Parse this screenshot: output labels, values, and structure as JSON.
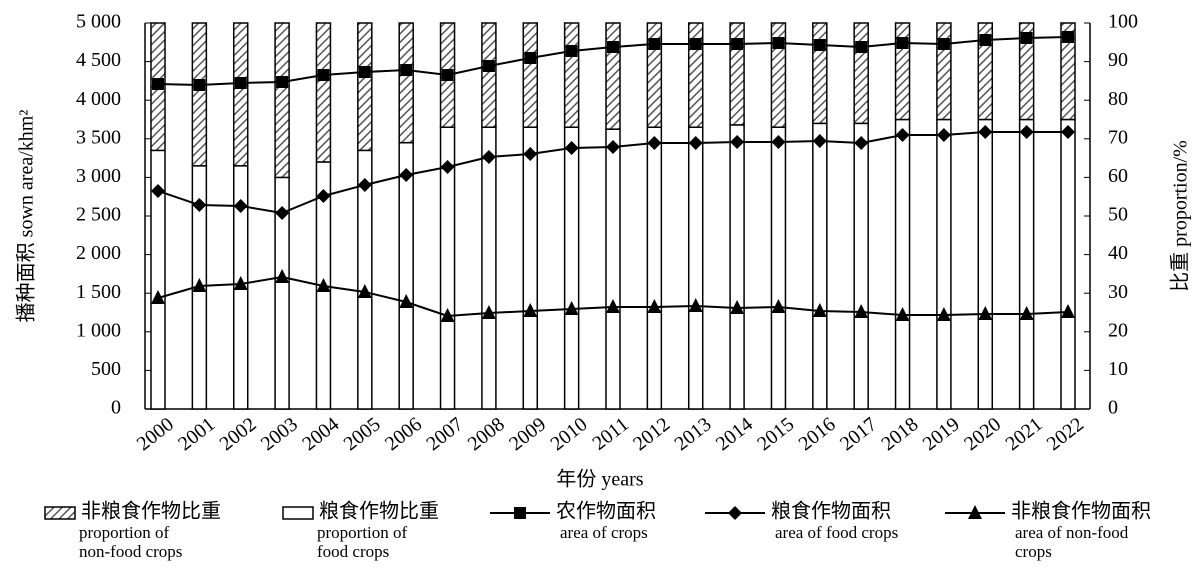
{
  "chart_data": {
    "type": "bar_line",
    "x_label": "年份 years",
    "y_label": "播种面积 sown area/khm²",
    "y2_label": "比重 proportion/%",
    "categories": [
      "2000",
      "2001",
      "2002",
      "2003",
      "2004",
      "2005",
      "2006",
      "2007",
      "2008",
      "2009",
      "2010",
      "2011",
      "2012",
      "2013",
      "2014",
      "2015",
      "2016",
      "2017",
      "2018",
      "2019",
      "2020",
      "2021",
      "2022"
    ],
    "ylim": [
      0,
      5000
    ],
    "yticks": [
      0,
      500,
      {
        "value": 1000,
        "label": "1 000"
      },
      {
        "value": 1500,
        "label": "1 500"
      },
      {
        "value": 2000,
        "label": "2 000"
      },
      {
        "value": 2500,
        "label": "2 500"
      },
      {
        "value": 3000,
        "label": "3 000"
      },
      {
        "value": 3500,
        "label": "3 500"
      },
      {
        "value": 4000,
        "label": "4 000"
      },
      {
        "value": 4500,
        "label": "4 500"
      },
      {
        "value": 5000,
        "label": "5 000"
      }
    ],
    "y2lim": [
      0,
      100
    ],
    "y2ticks": [
      0,
      10,
      20,
      30,
      40,
      50,
      60,
      70,
      80,
      90,
      100
    ],
    "series": [
      {
        "name": "非粮食作物比重",
        "name_en": [
          "proportion of",
          "non-food crops"
        ],
        "kind": "stacked-bar",
        "pattern": "hatch",
        "color": "#000000",
        "axis": "y2",
        "values": [
          33,
          37,
          37,
          40,
          36,
          33,
          31,
          27,
          27,
          27,
          27,
          27.5,
          27,
          27,
          26.4,
          27,
          26,
          26,
          25,
          25,
          25,
          25,
          25
        ]
      },
      {
        "name": "粮食作物比重",
        "name_en": [
          "proportion of",
          "food crops"
        ],
        "kind": "stacked-bar",
        "pattern": "none",
        "color": "#000000",
        "axis": "y2",
        "values": [
          67,
          63,
          63,
          60,
          64,
          67,
          69,
          73,
          73,
          73,
          73,
          72.5,
          73,
          73,
          73.6,
          73,
          74,
          74,
          75,
          75,
          75,
          75,
          75
        ]
      },
      {
        "name": "农作物面积",
        "name_en": [
          "area of crops"
        ],
        "kind": "line",
        "marker": "square",
        "color": "#000000",
        "axis": "y",
        "values": [
          4210,
          4197,
          4223,
          4236,
          4326,
          4365,
          4391,
          4326,
          4443,
          4547,
          4637,
          4689,
          4728,
          4728,
          4728,
          4741,
          4715,
          4689,
          4741,
          4728,
          4780,
          4806,
          4819
        ]
      },
      {
        "name": "粮食作物面积",
        "name_en": [
          "area of food crops"
        ],
        "kind": "line",
        "marker": "diamond",
        "color": "#000000",
        "axis": "y",
        "values": [
          2824,
          2642,
          2630,
          2539,
          2759,
          2902,
          3031,
          3135,
          3264,
          3303,
          3381,
          3394,
          3446,
          3446,
          3459,
          3459,
          3472,
          3446,
          3549,
          3549,
          3588,
          3588,
          3588
        ]
      },
      {
        "name": "非粮食作物面积",
        "name_en": [
          "area of non-food",
          "crops"
        ],
        "kind": "line",
        "marker": "triangle",
        "color": "#000000",
        "axis": "y",
        "values": [
          1438,
          1593,
          1619,
          1710,
          1593,
          1516,
          1386,
          1205,
          1244,
          1269,
          1295,
          1321,
          1321,
          1334,
          1308,
          1321,
          1269,
          1256,
          1218,
          1218,
          1231,
          1231,
          1256
        ]
      }
    ]
  }
}
